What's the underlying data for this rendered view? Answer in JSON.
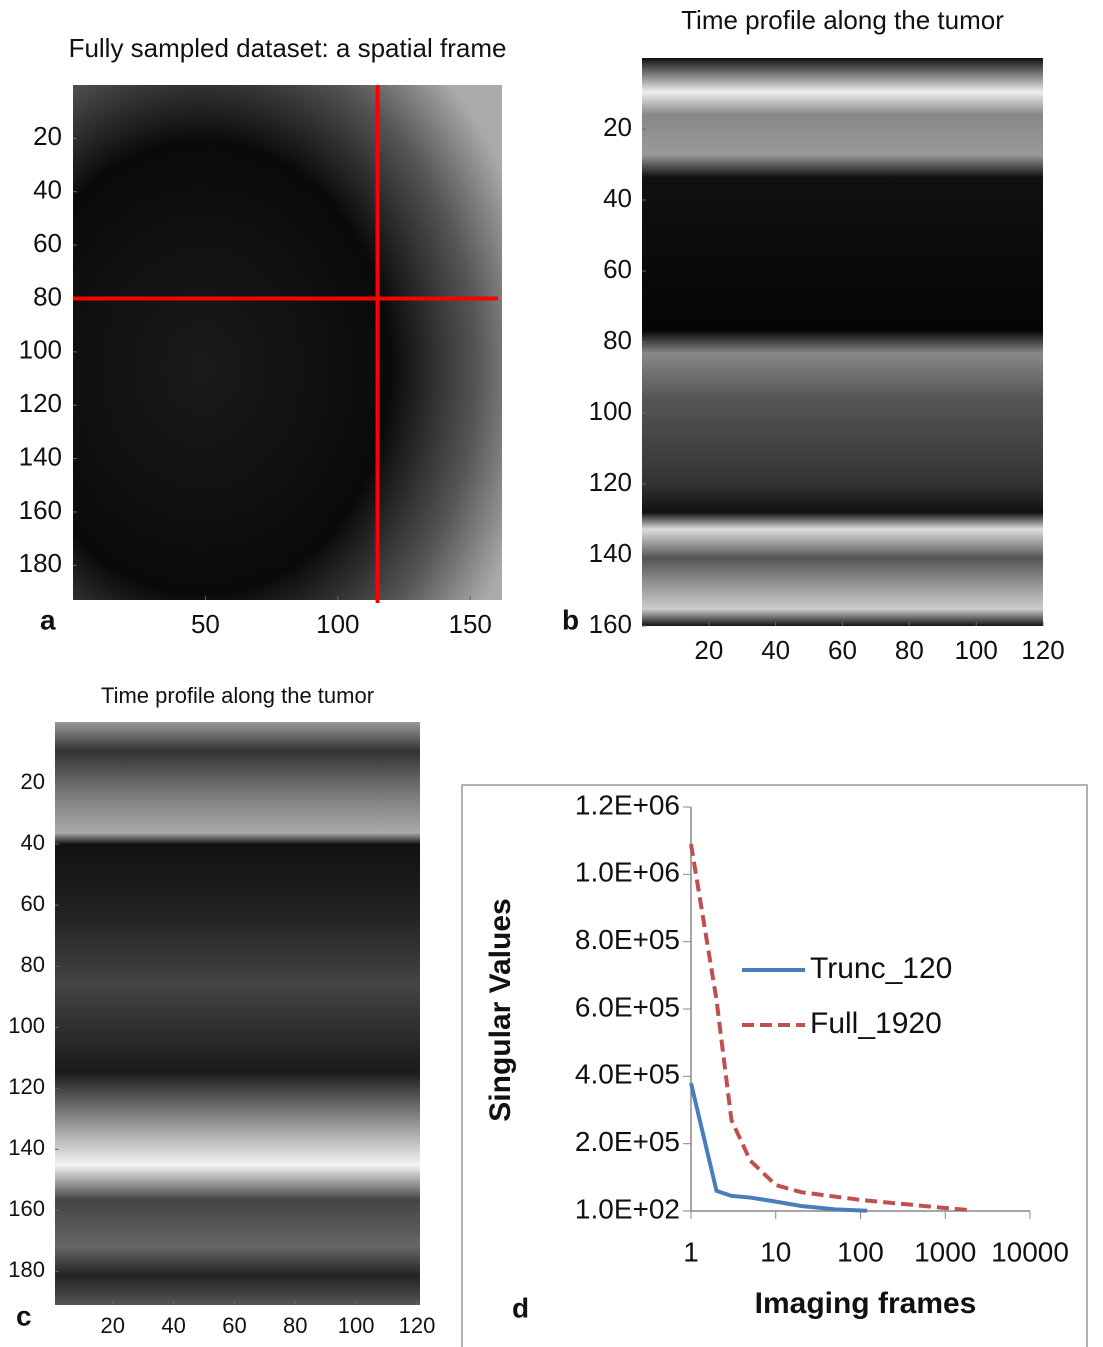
{
  "chart_data": [
    {
      "type": "image",
      "panel_label": "a",
      "title": "Fully sampled dataset: a spatial frame",
      "xlim": [
        0,
        162
      ],
      "ylim": [
        0,
        193
      ],
      "xticks": [
        50,
        100,
        150
      ],
      "yticks": [
        20,
        40,
        60,
        80,
        100,
        120,
        140,
        160,
        180
      ],
      "crosshair": {
        "x": 115,
        "y": 80,
        "color": "#ff0000"
      }
    },
    {
      "type": "image",
      "panel_label": "b",
      "title": "Time profile along the tumor",
      "xlim": [
        0,
        120
      ],
      "ylim": [
        0,
        160
      ],
      "xticks": [
        20,
        40,
        60,
        80,
        100,
        120
      ],
      "yticks": [
        20,
        40,
        60,
        80,
        100,
        120,
        140,
        160
      ]
    },
    {
      "type": "image",
      "panel_label": "c",
      "title": "Time profile along the tumor",
      "xlim": [
        1,
        121
      ],
      "ylim": [
        0,
        191
      ],
      "xticks": [
        20,
        40,
        60,
        80,
        100,
        120
      ],
      "yticks": [
        20,
        40,
        60,
        80,
        100,
        120,
        140,
        160,
        180
      ]
    },
    {
      "type": "line",
      "panel_label": "d",
      "x_label": "Imaging frames",
      "y_label": "Singular Values",
      "x_log": true,
      "xlim": [
        1,
        10000
      ],
      "xticks": [
        1,
        10,
        100,
        1000,
        10000
      ],
      "ylim": [
        100,
        1200000
      ],
      "yticks": [
        {
          "value": 100,
          "label": "1.0E+02"
        },
        {
          "value": 200000,
          "label": "2.0E+05"
        },
        {
          "value": 400000,
          "label": "4.0E+05"
        },
        {
          "value": 600000,
          "label": "6.0E+05"
        },
        {
          "value": 800000,
          "label": "8.0E+05"
        },
        {
          "value": 1000000,
          "label": "1.0E+06"
        },
        {
          "value": 1200000,
          "label": "1.2E+06"
        }
      ],
      "series": [
        {
          "name": "Trunc_120",
          "color": "#4a7ebb",
          "dash": false,
          "x": [
            1,
            2,
            3,
            5,
            10,
            20,
            50,
            120
          ],
          "values": [
            380000,
            60000,
            45000,
            40000,
            28000,
            15000,
            5000,
            1000
          ]
        },
        {
          "name": "Full_1920",
          "color": "#c0504d",
          "dash": true,
          "x": [
            1,
            2,
            3,
            5,
            10,
            20,
            100,
            1000,
            1920
          ],
          "values": [
            1090000,
            627000,
            270000,
            150000,
            77000,
            56000,
            33000,
            9000,
            3000
          ]
        }
      ]
    }
  ]
}
